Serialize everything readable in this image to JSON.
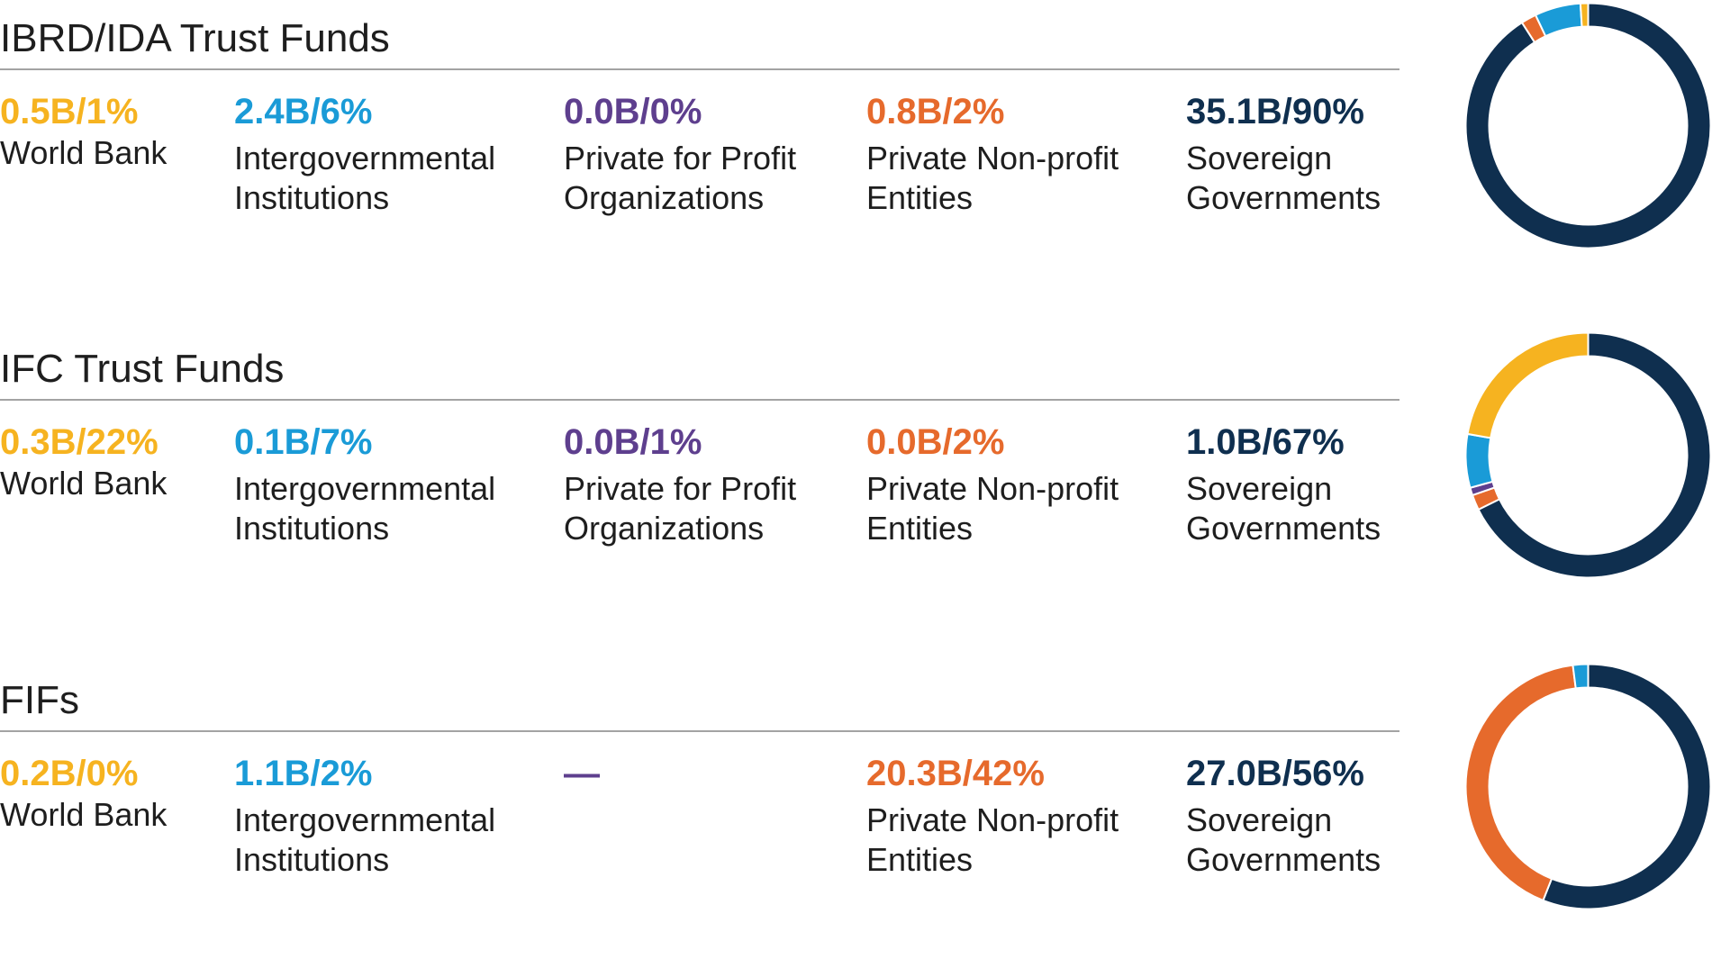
{
  "colors": {
    "world_bank": "#F6B320",
    "intergovernmental": "#1A9BD7",
    "private_profit": "#5E3F8E",
    "private_nonprofit": "#E66A2C",
    "sovereign": "#0F2F4F",
    "rule": "#A3A3A3"
  },
  "labels": {
    "world_bank": "World Bank",
    "intergovernmental_1": "Intergovernmental",
    "intergovernmental_2": "Institutions",
    "private_profit_1": "Private for Profit",
    "private_profit_2": "Organizations",
    "private_nonprofit_1": "Private Non-profit",
    "private_nonprofit_2": "Entities",
    "sovereign_1": "Sovereign",
    "sovereign_2": "Governments"
  },
  "sections": [
    {
      "title": "IBRD/IDA Trust Funds",
      "values": {
        "world_bank": "0.5B/1%",
        "intergovernmental": "2.4B/6%",
        "private_profit": "0.0B/0%",
        "private_nonprofit": "0.8B/2%",
        "sovereign": "35.1B/90%"
      }
    },
    {
      "title": "IFC Trust Funds",
      "values": {
        "world_bank": "0.3B/22%",
        "intergovernmental": "0.1B/7%",
        "private_profit": "0.0B/1%",
        "private_nonprofit": "0.0B/2%",
        "sovereign": "1.0B/67%"
      }
    },
    {
      "title": "FIFs",
      "values": {
        "world_bank": "0.2B/0%",
        "intergovernmental": "1.1B/2%",
        "private_profit": "—",
        "private_nonprofit": "20.3B/42%",
        "sovereign": "27.0B/56%"
      }
    }
  ],
  "chart_data": [
    {
      "type": "pie",
      "title": "IBRD/IDA Trust Funds",
      "donut": true,
      "categories": [
        "World Bank",
        "Intergovernmental Institutions",
        "Private for Profit Organizations",
        "Private Non-profit Entities",
        "Sovereign Governments"
      ],
      "values": [
        0.5,
        2.4,
        0.0,
        0.8,
        35.1
      ],
      "percents": [
        1,
        6,
        0,
        2,
        90
      ],
      "unit": "B"
    },
    {
      "type": "pie",
      "title": "IFC Trust Funds",
      "donut": true,
      "categories": [
        "World Bank",
        "Intergovernmental Institutions",
        "Private for Profit Organizations",
        "Private Non-profit Entities",
        "Sovereign Governments"
      ],
      "values": [
        0.3,
        0.1,
        0.0,
        0.0,
        1.0
      ],
      "percents": [
        22,
        7,
        1,
        2,
        67
      ],
      "unit": "B"
    },
    {
      "type": "pie",
      "title": "FIFs",
      "donut": true,
      "categories": [
        "World Bank",
        "Intergovernmental Institutions",
        "Private for Profit Organizations",
        "Private Non-profit Entities",
        "Sovereign Governments"
      ],
      "values": [
        0.2,
        1.1,
        null,
        20.3,
        27.0
      ],
      "percents": [
        0,
        2,
        null,
        42,
        56
      ],
      "unit": "B"
    }
  ]
}
